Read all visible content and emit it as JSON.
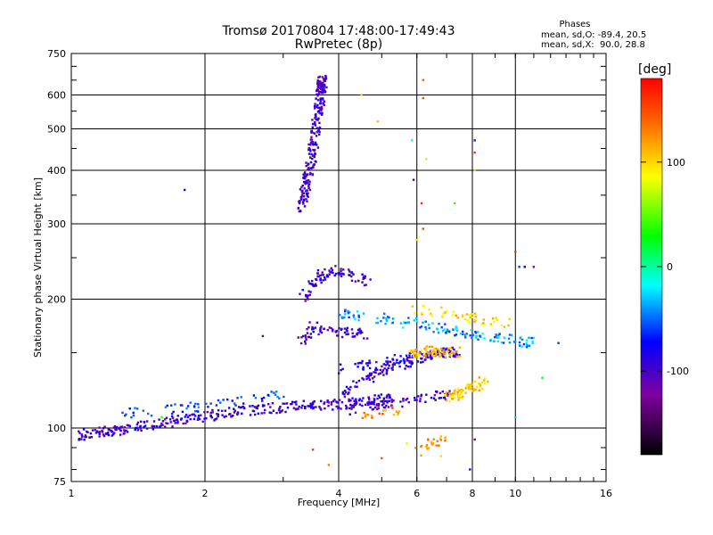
{
  "chart_data": {
    "type": "scatter",
    "title": "Tromsø 20170804 17:48:00-17:49:43",
    "subtitle": "RwPretec (8p)",
    "xlabel": "Frequency [MHz]",
    "ylabel": "Stationary phase Virtual Height [km]",
    "x_scale": "log",
    "y_scale": "log",
    "xlim": [
      1,
      16
    ],
    "ylim": [
      75,
      750
    ],
    "x_ticks": [
      1,
      2,
      4,
      6,
      8,
      10,
      16
    ],
    "x_tick_labels": [
      "1",
      "2",
      "4",
      "6",
      "8",
      "10",
      "16"
    ],
    "y_ticks": [
      75,
      100,
      200,
      300,
      400,
      500,
      600,
      750
    ],
    "y_tick_labels": [
      "75",
      "100",
      "200",
      "300",
      "400",
      "500",
      "600",
      "750"
    ],
    "grid": true,
    "colorbar": {
      "label": "[deg]",
      "range": [
        -180,
        180
      ],
      "ticks": [
        100,
        0,
        -100
      ],
      "tick_labels": [
        "100",
        "0",
        "-100"
      ]
    },
    "stats": {
      "heading": "Phases",
      "o_line": "mean, sd,O: -89.4, 20.5",
      "x_line": "mean, sd,X:  90.0, 28.8"
    },
    "traces": [
      {
        "points": [
          [
            1.05,
            96
          ],
          [
            1.1,
            97
          ],
          [
            1.2,
            98
          ],
          [
            1.3,
            99
          ],
          [
            1.45,
            101
          ],
          [
            1.6,
            103
          ],
          [
            1.8,
            105
          ],
          [
            2.0,
            106
          ],
          [
            2.2,
            108
          ],
          [
            2.5,
            110
          ],
          [
            2.8,
            111
          ],
          [
            3.1,
            112
          ],
          [
            3.4,
            113
          ],
          [
            3.7,
            113
          ],
          [
            4.0,
            114
          ],
          [
            4.4,
            115
          ],
          [
            4.8,
            116
          ],
          [
            5.2,
            117
          ]
        ],
        "phase": -95,
        "count": 340
      },
      {
        "points": [
          [
            1.3,
            108
          ],
          [
            1.6,
            110
          ],
          [
            1.9,
            112
          ],
          [
            2.3,
            115
          ],
          [
            2.7,
            118
          ],
          [
            3.0,
            120
          ]
        ],
        "phase": -60,
        "count": 60
      },
      {
        "points": [
          [
            3.3,
            160
          ],
          [
            3.5,
            172
          ],
          [
            3.8,
            168
          ],
          [
            4.2,
            167
          ],
          [
            4.6,
            166
          ]
        ],
        "phase": -95,
        "count": 70
      },
      {
        "points": [
          [
            3.3,
            200
          ],
          [
            3.5,
            215
          ],
          [
            3.7,
            230
          ],
          [
            4.0,
            235
          ],
          [
            4.3,
            225
          ],
          [
            4.7,
            220
          ]
        ],
        "phase": -95,
        "count": 90
      },
      {
        "points": [
          [
            3.3,
            325
          ],
          [
            3.4,
            380
          ],
          [
            3.5,
            450
          ],
          [
            3.6,
            540
          ],
          [
            3.65,
            620
          ],
          [
            3.7,
            650
          ]
        ],
        "phase": -98,
        "count": 260
      },
      {
        "points": [
          [
            4.0,
            120
          ],
          [
            4.5,
            128
          ],
          [
            5.0,
            135
          ],
          [
            5.5,
            140
          ],
          [
            6.0,
            145
          ],
          [
            6.5,
            148
          ],
          [
            7.0,
            150
          ],
          [
            7.5,
            150
          ]
        ],
        "phase": -90,
        "count": 130
      },
      {
        "points": [
          [
            4.0,
            137
          ],
          [
            4.5,
            140
          ],
          [
            5.0,
            142
          ],
          [
            5.5,
            145
          ],
          [
            6.0,
            148
          ],
          [
            6.5,
            149
          ]
        ],
        "phase": -85,
        "count": 60
      },
      {
        "points": [
          [
            4.2,
            110
          ],
          [
            4.6,
            112
          ],
          [
            5.0,
            113
          ],
          [
            5.5,
            115
          ],
          [
            6.0,
            117
          ],
          [
            6.5,
            118
          ],
          [
            7.0,
            120
          ]
        ],
        "phase": -95,
        "count": 70
      },
      {
        "points": [
          [
            5.8,
            150
          ],
          [
            6.3,
            152
          ],
          [
            6.8,
            150
          ],
          [
            7.4,
            150
          ]
        ],
        "phase": 110,
        "count": 70
      },
      {
        "points": [
          [
            7.0,
            118
          ],
          [
            7.5,
            120
          ],
          [
            8.0,
            124
          ],
          [
            8.5,
            128
          ]
        ],
        "phase": 100,
        "count": 70
      },
      {
        "points": [
          [
            4.5,
            108
          ],
          [
            5.0,
            109
          ],
          [
            5.5,
            110
          ]
        ],
        "phase": 130,
        "count": 20
      },
      {
        "points": [
          [
            4.0,
            185
          ],
          [
            5.0,
            180
          ],
          [
            6.0,
            175
          ],
          [
            7.0,
            170
          ],
          [
            8.0,
            165
          ],
          [
            9.0,
            162
          ],
          [
            10.0,
            160
          ],
          [
            11.0,
            158
          ]
        ],
        "phase": -40,
        "count": 140
      },
      {
        "points": [
          [
            6.0,
            190
          ],
          [
            7.0,
            185
          ],
          [
            8.0,
            180
          ],
          [
            9.0,
            178
          ],
          [
            10.0,
            175
          ]
        ],
        "phase": 100,
        "count": 50
      },
      {
        "points": [
          [
            6.0,
            88
          ],
          [
            6.5,
            92
          ],
          [
            7.0,
            95
          ]
        ],
        "phase": 120,
        "count": 25
      }
    ],
    "isolated_points": [
      {
        "x": 1.8,
        "y": 360,
        "phase": -90
      },
      {
        "x": 6.2,
        "y": 650,
        "phase": 140
      },
      {
        "x": 6.2,
        "y": 590,
        "phase": 150
      },
      {
        "x": 6.15,
        "y": 335,
        "phase": 160
      },
      {
        "x": 6.2,
        "y": 292,
        "phase": 150
      },
      {
        "x": 5.9,
        "y": 380,
        "phase": -100
      },
      {
        "x": 5.85,
        "y": 470,
        "phase": -20
      },
      {
        "x": 8.1,
        "y": 470,
        "phase": -100
      },
      {
        "x": 8.1,
        "y": 440,
        "phase": 160
      },
      {
        "x": 8.1,
        "y": 400,
        "phase": 60
      },
      {
        "x": 7.3,
        "y": 335,
        "phase": 40
      },
      {
        "x": 6.3,
        "y": 425,
        "phase": 70
      },
      {
        "x": 4.9,
        "y": 520,
        "phase": 110
      },
      {
        "x": 4.5,
        "y": 600,
        "phase": 100
      },
      {
        "x": 6.0,
        "y": 275,
        "phase": 100
      },
      {
        "x": 10.0,
        "y": 258,
        "phase": 160
      },
      {
        "x": 10.5,
        "y": 238,
        "phase": -160
      },
      {
        "x": 11.0,
        "y": 238,
        "phase": -120
      },
      {
        "x": 10.2,
        "y": 238,
        "phase": -60
      },
      {
        "x": 12.5,
        "y": 158,
        "phase": -60
      },
      {
        "x": 11.5,
        "y": 131,
        "phase": 20
      },
      {
        "x": 10.0,
        "y": 106,
        "phase": -30
      },
      {
        "x": 8.1,
        "y": 94,
        "phase": -130
      },
      {
        "x": 3.5,
        "y": 89,
        "phase": 160
      },
      {
        "x": 5.0,
        "y": 85,
        "phase": 150
      },
      {
        "x": 5.7,
        "y": 92,
        "phase": 80
      },
      {
        "x": 6.8,
        "y": 86,
        "phase": 100
      },
      {
        "x": 3.8,
        "y": 82,
        "phase": 130
      },
      {
        "x": 2.7,
        "y": 164,
        "phase": -100
      },
      {
        "x": 1.6,
        "y": 106,
        "phase": 40
      },
      {
        "x": 7.9,
        "y": 80,
        "phase": -90
      }
    ]
  }
}
